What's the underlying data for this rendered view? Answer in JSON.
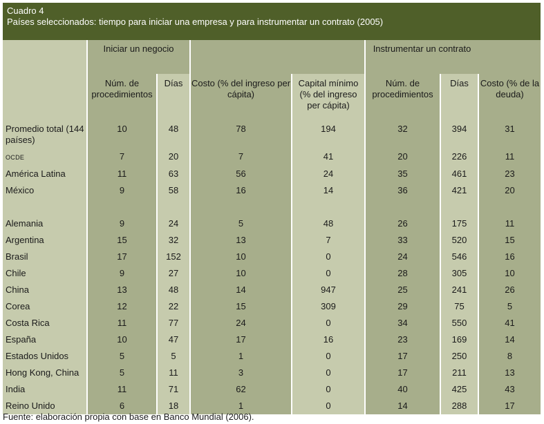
{
  "table": {
    "label": "Cuadro 4",
    "title": "Países seleccionados: tiempo para iniciar una empresa y para instrumentar un contrato (2005)",
    "group_headers": {
      "start_business": "Iniciar un negocio",
      "enforce_contract": "Instrumentar un contrato"
    },
    "columns": [
      "Núm. de procedimientos",
      "Días",
      "Costo (% del ingreso per cápita)",
      "Capital mínimo (% del ingreso per cápita)",
      "Núm. de procedimientos",
      "Días",
      "Costo (% de la deuda)"
    ],
    "rows_summary": [
      {
        "name": "Promedio total (144 países)",
        "values": [
          "10",
          "48",
          "78",
          "194",
          "32",
          "394",
          "31"
        ]
      },
      {
        "name": "OCDE",
        "values": [
          "7",
          "20",
          "7",
          "41",
          "20",
          "226",
          "11"
        ]
      },
      {
        "name": "América Latina",
        "values": [
          "11",
          "63",
          "56",
          "24",
          "35",
          "461",
          "23"
        ]
      },
      {
        "name": "México",
        "values": [
          "9",
          "58",
          "16",
          "14",
          "36",
          "421",
          "20"
        ]
      }
    ],
    "rows_countries": [
      {
        "name": "Alemania",
        "values": [
          "9",
          "24",
          "5",
          "48",
          "26",
          "175",
          "11"
        ]
      },
      {
        "name": "Argentina",
        "values": [
          "15",
          "32",
          "13",
          "7",
          "33",
          "520",
          "15"
        ]
      },
      {
        "name": "Brasil",
        "values": [
          "17",
          "152",
          "10",
          "0",
          "24",
          "546",
          "16"
        ]
      },
      {
        "name": "Chile",
        "values": [
          "9",
          "27",
          "10",
          "0",
          "28",
          "305",
          "10"
        ]
      },
      {
        "name": "China",
        "values": [
          "13",
          "48",
          "14",
          "947",
          "25",
          "241",
          "26"
        ]
      },
      {
        "name": "Corea",
        "values": [
          "12",
          "22",
          "15",
          "309",
          "29",
          "75",
          "5"
        ]
      },
      {
        "name": "Costa Rica",
        "values": [
          "11",
          "77",
          "24",
          "0",
          "34",
          "550",
          "41"
        ]
      },
      {
        "name": "España",
        "values": [
          "10",
          "47",
          "17",
          "16",
          "23",
          "169",
          "14"
        ]
      },
      {
        "name": "Estados Unidos",
        "values": [
          "5",
          "5",
          "1",
          "0",
          "17",
          "250",
          "8"
        ]
      },
      {
        "name": "Hong Kong, China",
        "values": [
          "5",
          "11",
          "3",
          "0",
          "17",
          "211",
          "13"
        ]
      },
      {
        "name": "India",
        "values": [
          "11",
          "71",
          "62",
          "0",
          "40",
          "425",
          "43"
        ]
      },
      {
        "name": "Reino Unido",
        "values": [
          "6",
          "18",
          "1",
          "0",
          "14",
          "288",
          "17"
        ]
      }
    ],
    "source": "Fuente: elaboración propia con base en Banco Mundial (2006).",
    "colors": {
      "header": "#4f5f29",
      "dark_band": "#a7ae8b",
      "light_band": "#c6cbad"
    }
  }
}
